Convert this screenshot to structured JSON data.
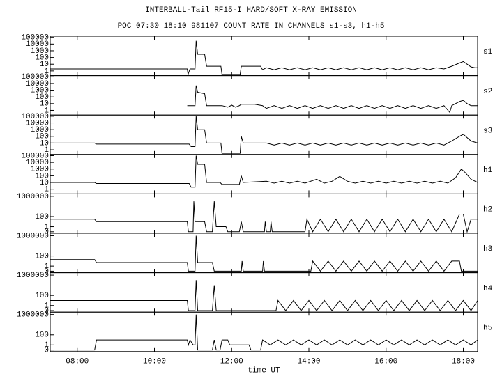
{
  "chart_data": [
    {
      "type": "line",
      "title": "INTERBALL-Tail RF15-I HARD/SOFT X-RAY EMISSION",
      "subtitle": "POC 07:30 18:10 981107  COUNT RATE IN CHANNELS s1-s3, h1-h5",
      "label": "s1",
      "log_scale": true,
      "color": "#000000",
      "xlim": [
        7.3,
        18.37
      ],
      "ylim": [
        0.2,
        150000
      ],
      "yticks": [
        1,
        10,
        100,
        1000,
        10000,
        100000
      ],
      "x": [
        7.3,
        10.85,
        10.87,
        10.92,
        11.05,
        11.08,
        11.12,
        11.3,
        11.35,
        11.72,
        11.75,
        12.22,
        12.25,
        12.75,
        12.8,
        12.9,
        13.1,
        13.3,
        13.5,
        13.7,
        13.9,
        14.1,
        14.3,
        14.5,
        14.7,
        14.9,
        15.1,
        15.3,
        15.5,
        15.7,
        15.9,
        16.1,
        16.3,
        16.5,
        16.7,
        16.9,
        17.1,
        17.3,
        17.5,
        17.7,
        17.9,
        18.0,
        18.1,
        18.2,
        18.3,
        18.37
      ],
      "values": [
        2,
        2,
        0.3,
        2,
        2,
        30000,
        300,
        300,
        5,
        5,
        0.3,
        0.3,
        5,
        5,
        1.5,
        3,
        1.5,
        3,
        1.5,
        3,
        1.5,
        3,
        1.5,
        3,
        1.5,
        3,
        1.5,
        3,
        1.5,
        3,
        1.5,
        3,
        1.5,
        3,
        1.5,
        3,
        1.5,
        3,
        2,
        5,
        15,
        25,
        10,
        4,
        3,
        3
      ]
    },
    {
      "type": "line",
      "label": "s2",
      "log_scale": true,
      "color": "#000000",
      "xlim": [
        7.3,
        18.37
      ],
      "ylim": [
        0.2,
        150000
      ],
      "yticks": [
        1,
        10,
        100,
        1000,
        10000,
        100000
      ],
      "x": [
        10.85,
        11.05,
        11.08,
        11.12,
        11.3,
        11.35,
        11.75,
        11.9,
        12.0,
        12.1,
        12.2,
        12.25,
        12.6,
        12.8,
        12.9,
        13.1,
        13.3,
        13.5,
        13.7,
        13.9,
        14.1,
        14.3,
        14.5,
        14.7,
        14.9,
        15.1,
        15.3,
        15.5,
        15.7,
        15.9,
        16.1,
        16.3,
        16.5,
        16.7,
        16.9,
        17.1,
        17.3,
        17.5,
        17.65,
        17.7,
        17.9,
        18.0,
        18.1,
        18.2,
        18.37
      ],
      "values": [
        5,
        5,
        5000,
        500,
        300,
        5,
        5,
        3,
        6,
        3,
        5,
        8,
        8,
        5,
        2,
        5,
        2,
        5,
        2,
        5,
        2,
        5,
        2,
        5,
        2,
        5,
        2,
        5,
        2,
        5,
        2,
        5,
        2,
        5,
        2,
        5,
        2,
        5,
        0.5,
        5,
        20,
        30,
        10,
        5,
        5
      ]
    },
    {
      "type": "line",
      "label": "s3",
      "log_scale": true,
      "color": "#000000",
      "xlim": [
        7.3,
        18.37
      ],
      "ylim": [
        0.2,
        150000
      ],
      "yticks": [
        1,
        10,
        100,
        1000,
        10000,
        100000
      ],
      "x": [
        7.3,
        8.45,
        8.5,
        10.9,
        10.95,
        11.05,
        11.08,
        11.12,
        11.3,
        11.35,
        11.72,
        11.75,
        12.22,
        12.25,
        12.3,
        12.7,
        12.9,
        13.1,
        13.3,
        13.5,
        13.7,
        13.9,
        14.1,
        14.3,
        14.5,
        14.7,
        14.9,
        15.1,
        15.3,
        15.5,
        15.7,
        15.9,
        16.1,
        16.3,
        16.5,
        16.7,
        16.9,
        17.1,
        17.3,
        17.5,
        17.7,
        17.9,
        18.0,
        18.2,
        18.37
      ],
      "values": [
        10,
        10,
        7,
        7,
        3,
        3,
        100000,
        1000,
        1000,
        10,
        10,
        0.3,
        0.3,
        100,
        10,
        10,
        10,
        5,
        10,
        5,
        10,
        5,
        10,
        5,
        10,
        5,
        10,
        5,
        10,
        5,
        10,
        5,
        10,
        5,
        10,
        5,
        10,
        5,
        10,
        5,
        20,
        100,
        200,
        20,
        10
      ]
    },
    {
      "type": "line",
      "label": "h1",
      "log_scale": true,
      "color": "#000000",
      "xlim": [
        7.3,
        18.37
      ],
      "ylim": [
        0.2,
        150000
      ],
      "yticks": [
        1,
        10,
        100,
        1000,
        10000,
        100000
      ],
      "x": [
        7.3,
        8.45,
        8.5,
        10.9,
        10.95,
        11.05,
        11.08,
        11.12,
        11.3,
        11.35,
        11.7,
        11.75,
        12.2,
        12.25,
        12.3,
        12.9,
        13.1,
        13.3,
        13.5,
        13.7,
        13.9,
        14.2,
        14.4,
        14.6,
        14.8,
        15.0,
        15.2,
        15.4,
        15.6,
        15.8,
        16.0,
        16.2,
        16.4,
        16.6,
        16.8,
        17.0,
        17.2,
        17.4,
        17.6,
        17.8,
        17.95,
        18.05,
        18.2,
        18.37
      ],
      "values": [
        10,
        10,
        7,
        7,
        2,
        2,
        100000,
        5000,
        5000,
        10,
        10,
        5,
        5,
        100,
        10,
        15,
        8,
        15,
        8,
        15,
        8,
        30,
        8,
        15,
        80,
        15,
        8,
        15,
        8,
        15,
        8,
        15,
        8,
        15,
        8,
        15,
        8,
        15,
        8,
        50,
        1000,
        300,
        30,
        10
      ]
    },
    {
      "type": "line",
      "label": "h2",
      "log_scale": true,
      "color": "#000000",
      "xlim": [
        7.3,
        18.37
      ],
      "ylim": [
        0.05,
        3000000
      ],
      "yticks": [
        0,
        1,
        100,
        1000000
      ],
      "x": [
        7.3,
        8.45,
        8.5,
        10.85,
        10.88,
        11.0,
        11.02,
        11.05,
        11.3,
        11.35,
        11.5,
        11.55,
        11.6,
        11.85,
        11.9,
        12.2,
        12.25,
        12.3,
        12.85,
        12.87,
        12.9,
        13.0,
        13.02,
        13.05,
        13.9,
        13.95,
        14.1,
        14.3,
        14.5,
        14.7,
        14.9,
        15.1,
        15.3,
        15.5,
        15.7,
        15.9,
        16.1,
        16.3,
        16.5,
        16.7,
        16.9,
        17.1,
        17.3,
        17.5,
        17.7,
        17.9,
        18.0,
        18.1,
        18.2,
        18.37
      ],
      "values": [
        30,
        30,
        10,
        10,
        0,
        0,
        100000,
        10,
        10,
        0,
        0,
        100000,
        1,
        1,
        0,
        0,
        10,
        0,
        0,
        10,
        0,
        0,
        10,
        0,
        0,
        30,
        0,
        30,
        0,
        30,
        0,
        30,
        0,
        30,
        0,
        30,
        0,
        30,
        0,
        30,
        0,
        30,
        0,
        30,
        0,
        300,
        300,
        0,
        30,
        30
      ]
    },
    {
      "type": "line",
      "label": "h3",
      "log_scale": true,
      "color": "#000000",
      "xlim": [
        7.3,
        18.37
      ],
      "ylim": [
        0.05,
        3000000
      ],
      "yticks": [
        0,
        1,
        100,
        1000000
      ],
      "x": [
        7.3,
        8.45,
        8.5,
        10.85,
        10.88,
        11.05,
        11.08,
        11.12,
        11.5,
        11.55,
        12.25,
        12.27,
        12.3,
        12.8,
        12.82,
        12.85,
        14.05,
        14.1,
        14.3,
        14.5,
        14.7,
        14.9,
        15.1,
        15.3,
        15.5,
        15.7,
        15.9,
        16.1,
        16.3,
        16.5,
        16.7,
        16.9,
        17.1,
        17.3,
        17.5,
        17.7,
        17.9,
        17.95,
        18.37
      ],
      "values": [
        20,
        20,
        5,
        5,
        0,
        0,
        1000000,
        5,
        5,
        0,
        0,
        10,
        0,
        0,
        10,
        0,
        0,
        10,
        0,
        10,
        0,
        10,
        0,
        10,
        0,
        10,
        0,
        10,
        0,
        10,
        0,
        10,
        0,
        10,
        0,
        10,
        10,
        0,
        0
      ]
    },
    {
      "type": "line",
      "label": "h4",
      "log_scale": true,
      "color": "#000000",
      "xlim": [
        7.3,
        18.37
      ],
      "ylim": [
        0.05,
        3000000
      ],
      "yticks": [
        0,
        1,
        100,
        1000000
      ],
      "x": [
        7.3,
        10.85,
        10.88,
        11.05,
        11.08,
        11.12,
        11.5,
        11.55,
        11.6,
        13.15,
        13.2,
        13.4,
        13.6,
        13.8,
        14.0,
        14.2,
        14.4,
        14.6,
        14.8,
        15.0,
        15.2,
        15.4,
        15.6,
        15.8,
        16.0,
        16.2,
        16.4,
        16.6,
        16.8,
        17.0,
        17.2,
        17.4,
        17.6,
        17.8,
        18.0,
        18.2,
        18.37
      ],
      "values": [
        10,
        10,
        0,
        0,
        100000,
        0,
        0,
        10000,
        0,
        0,
        10,
        0,
        10,
        0,
        10,
        0,
        10,
        0,
        10,
        0,
        10,
        0,
        10,
        0,
        10,
        0,
        10,
        0,
        10,
        0,
        10,
        0,
        10,
        0,
        10,
        0,
        10
      ]
    },
    {
      "type": "line",
      "label": "h5",
      "log_scale": true,
      "color": "#000000",
      "xlim": [
        7.3,
        18.37
      ],
      "ylim": [
        0.05,
        3000000
      ],
      "yticks": [
        0,
        1,
        100,
        1000000
      ],
      "xticks": [
        {
          "value": 8,
          "label": "08:00"
        },
        {
          "value": 10,
          "label": "10:00"
        },
        {
          "value": 12,
          "label": "12:00"
        },
        {
          "value": 14,
          "label": "14:00"
        },
        {
          "value": 16,
          "label": "16:00"
        },
        {
          "value": 18,
          "label": "18:00"
        }
      ],
      "xlabel": "time UT",
      "x": [
        7.3,
        8.45,
        8.5,
        10.85,
        10.88,
        10.92,
        11.0,
        11.05,
        11.08,
        11.12,
        11.5,
        11.55,
        11.6,
        11.7,
        11.75,
        11.9,
        11.95,
        12.45,
        12.5,
        12.75,
        12.8,
        13.0,
        13.2,
        13.4,
        13.6,
        13.8,
        14.0,
        14.2,
        14.4,
        14.6,
        14.8,
        15.0,
        15.2,
        15.4,
        15.6,
        15.8,
        16.0,
        16.2,
        16.4,
        16.6,
        16.8,
        17.0,
        17.2,
        17.4,
        17.6,
        17.8,
        18.0,
        18.2,
        18.37
      ],
      "values": [
        0,
        0,
        10,
        10,
        1,
        10,
        1,
        1,
        1000000,
        0,
        0,
        10,
        0,
        0,
        10,
        10,
        1,
        1,
        0,
        0,
        10,
        1,
        10,
        1,
        10,
        1,
        10,
        1,
        10,
        1,
        10,
        1,
        10,
        1,
        10,
        1,
        10,
        1,
        10,
        1,
        10,
        1,
        10,
        1,
        10,
        1,
        10,
        1,
        10
      ]
    }
  ]
}
